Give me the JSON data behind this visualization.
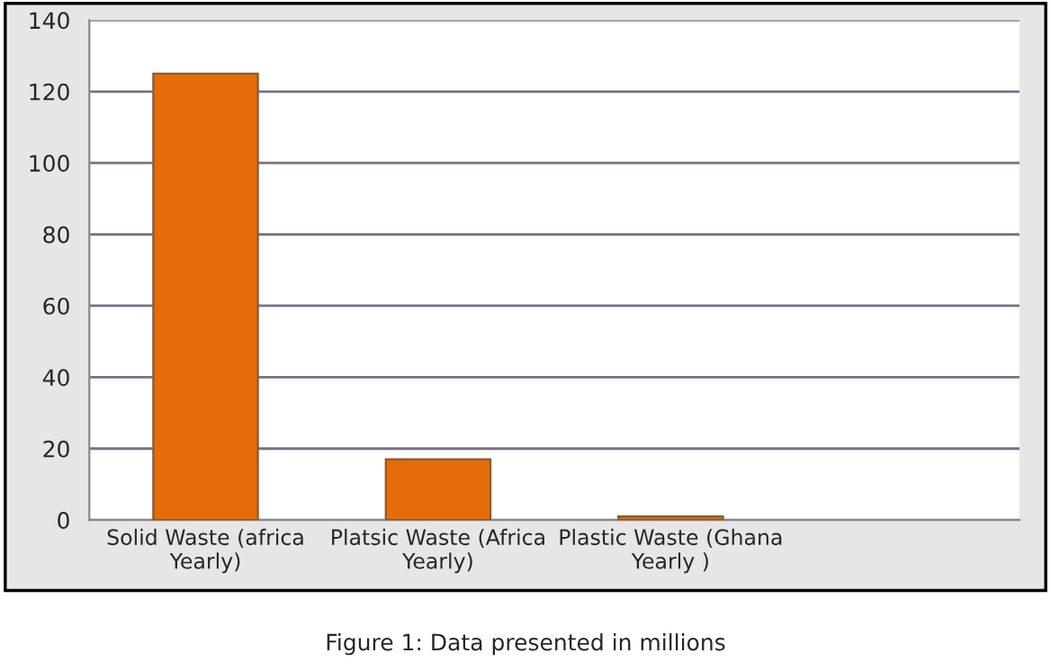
{
  "chart_data": {
    "type": "bar",
    "categories": [
      "Solid Waste (africa\nYearly)",
      "Platsic Waste (Africa\nYearly)",
      "Plastic Waste (Ghana\nYearly )",
      null
    ],
    "values": [
      125,
      17,
      1,
      null
    ],
    "color": "#e46c0a",
    "ylim": [
      0,
      140
    ],
    "yticks": [
      0,
      20,
      40,
      60,
      80,
      100,
      120,
      140
    ],
    "grid": "y",
    "annotations": [
      "Figure 1: Data presented in millions"
    ]
  }
}
